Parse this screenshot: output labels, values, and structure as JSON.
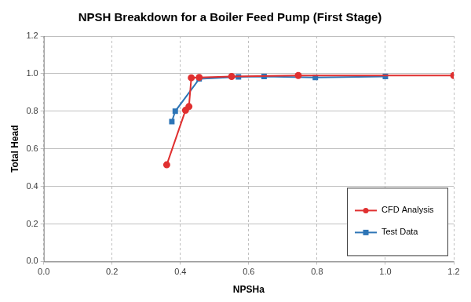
{
  "chart_data": {
    "type": "line",
    "title": "NPSH Breakdown for a Boiler Feed Pump (First Stage)",
    "x_label": "NPSHa",
    "y_label": "Total Head",
    "xlim": [
      0,
      1.2
    ],
    "xticks": [
      {
        "value": 0,
        "label": "0.0"
      },
      0.2,
      0.4,
      0.6,
      0.8,
      {
        "value": 1,
        "label": "1.0"
      },
      1.2
    ],
    "ylim": [
      0,
      1.2
    ],
    "yticks": [
      {
        "value": 0,
        "label": "0.0"
      },
      0.2,
      0.4,
      0.6,
      0.8,
      {
        "value": 1,
        "label": "1.0"
      },
      1.2
    ],
    "grid": true,
    "legend": "lower right",
    "series": [
      {
        "name": "CFD Analysis",
        "color": "#e03030",
        "marker": "circle",
        "line_style": "solid",
        "x": [
          0.36,
          0.415,
          0.425,
          0.432,
          0.455,
          0.55,
          0.745,
          1.2
        ],
        "values": [
          0.515,
          0.805,
          0.825,
          0.978,
          0.98,
          0.985,
          0.99,
          0.99
        ]
      },
      {
        "name": "Test Data",
        "color": "#2e75b6",
        "marker": "square",
        "line_style": "solid",
        "x": [
          0.375,
          0.385,
          0.455,
          0.57,
          0.645,
          0.795,
          1.0
        ],
        "values": [
          0.745,
          0.8,
          0.972,
          0.983,
          0.985,
          0.98,
          0.985
        ]
      }
    ]
  }
}
